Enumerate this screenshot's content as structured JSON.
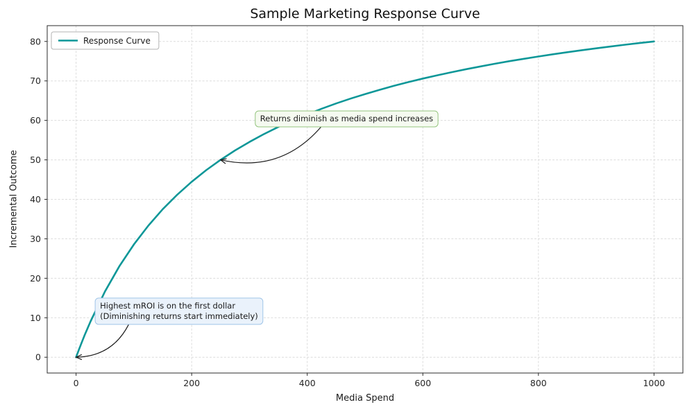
{
  "chart_data": {
    "type": "line",
    "title": "Sample Marketing Response Curve",
    "xlabel": "Media Spend",
    "ylabel": "Incremental Outcome",
    "xlim": [
      -50,
      1050
    ],
    "ylim": [
      -4,
      84
    ],
    "x_ticks": [
      0,
      200,
      400,
      600,
      800,
      1000
    ],
    "y_ticks": [
      0,
      10,
      20,
      30,
      40,
      50,
      60,
      70,
      80
    ],
    "grid": true,
    "grid_style": "dashed",
    "legend": {
      "position": "upper-left",
      "entries": [
        "Response Curve"
      ]
    },
    "series": [
      {
        "name": "Response Curve",
        "color": "#0d9798",
        "line_width": 2.6,
        "x": [
          0,
          5,
          10,
          15,
          25,
          50,
          75,
          100,
          125,
          150,
          175,
          200,
          225,
          250,
          275,
          300,
          325,
          350,
          375,
          400,
          425,
          450,
          475,
          500,
          525,
          550,
          575,
          600,
          625,
          650,
          675,
          700,
          725,
          750,
          775,
          800,
          825,
          850,
          875,
          900,
          925,
          950,
          975,
          1000
        ],
        "y": [
          0,
          1.96,
          3.85,
          5.66,
          9.09,
          16.67,
          23.08,
          28.57,
          33.33,
          37.5,
          41.18,
          44.44,
          47.37,
          50,
          52.38,
          54.55,
          56.52,
          58.33,
          60,
          61.54,
          62.96,
          64.29,
          65.52,
          66.67,
          67.74,
          68.75,
          69.7,
          70.59,
          71.43,
          72.22,
          72.97,
          73.68,
          74.36,
          75,
          75.61,
          76.19,
          76.74,
          77.27,
          77.78,
          78.26,
          78.72,
          79.17,
          79.59,
          80
        ]
      }
    ],
    "annotations": [
      {
        "lines": [
          "Returns diminish as media spend increases"
        ],
        "target_xy": [
          250,
          50
        ],
        "text_xy": [
          310,
          62.4
        ],
        "box_fill": "#f5faf0",
        "box_border": "#93c47d",
        "text_color": "#1a1a1a"
      },
      {
        "lines": [
          "Highest mROI is on the first dollar",
          "(Diminishing returns start immediately)"
        ],
        "target_xy": [
          0,
          0
        ],
        "text_xy": [
          33,
          15
        ],
        "box_fill": "#eaf2fb",
        "box_border": "#9fc5e8",
        "text_color": "#1a1a1a"
      }
    ]
  }
}
